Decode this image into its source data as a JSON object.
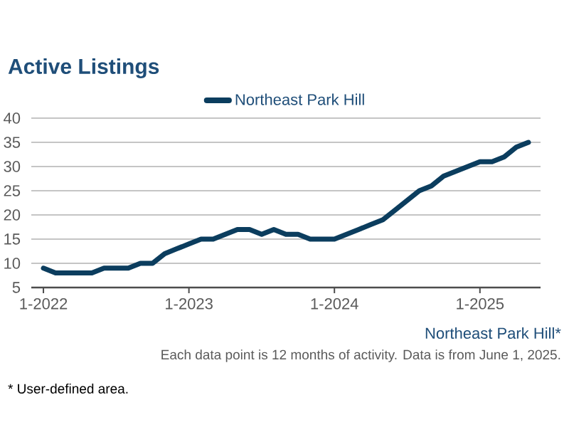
{
  "chart_data": {
    "type": "line",
    "title": "Active Listings",
    "x": [
      "2022-01",
      "2022-02",
      "2022-03",
      "2022-04",
      "2022-05",
      "2022-06",
      "2022-07",
      "2022-08",
      "2022-09",
      "2022-10",
      "2022-11",
      "2022-12",
      "2023-01",
      "2023-02",
      "2023-03",
      "2023-04",
      "2023-05",
      "2023-06",
      "2023-07",
      "2023-08",
      "2023-09",
      "2023-10",
      "2023-11",
      "2023-12",
      "2024-01",
      "2024-02",
      "2024-03",
      "2024-04",
      "2024-05",
      "2024-06",
      "2024-07",
      "2024-08",
      "2024-09",
      "2024-10",
      "2024-11",
      "2024-12",
      "2025-01",
      "2025-02",
      "2025-03",
      "2025-04",
      "2025-05"
    ],
    "series": [
      {
        "name": "Northeast Park Hill",
        "color": "#0b3d5e",
        "values": [
          9,
          8,
          8,
          8,
          8,
          9,
          9,
          9,
          10,
          10,
          12,
          13,
          14,
          15,
          15,
          16,
          17,
          17,
          16,
          17,
          16,
          16,
          15,
          15,
          15,
          16,
          17,
          18,
          19,
          21,
          23,
          25,
          26,
          28,
          29,
          30,
          31,
          31,
          32,
          34,
          35
        ]
      }
    ],
    "xlim": [
      "2021-12",
      "2025-06"
    ],
    "xticks": [
      {
        "value": "2022-01",
        "label": "1-2022"
      },
      {
        "value": "2023-01",
        "label": "1-2023"
      },
      {
        "value": "2024-01",
        "label": "1-2024"
      },
      {
        "value": "2025-01",
        "label": "1-2025"
      }
    ],
    "ylim": [
      5,
      40
    ],
    "yticks": [
      5,
      10,
      15,
      20,
      25,
      30,
      35,
      40
    ],
    "grid": "y",
    "legend": "top",
    "line_style": "solid",
    "annotations": [
      "Northeast Park Hill*",
      "Each data point is 12 months of activity. Data is from June 1, 2025.",
      "* User-defined area."
    ]
  }
}
